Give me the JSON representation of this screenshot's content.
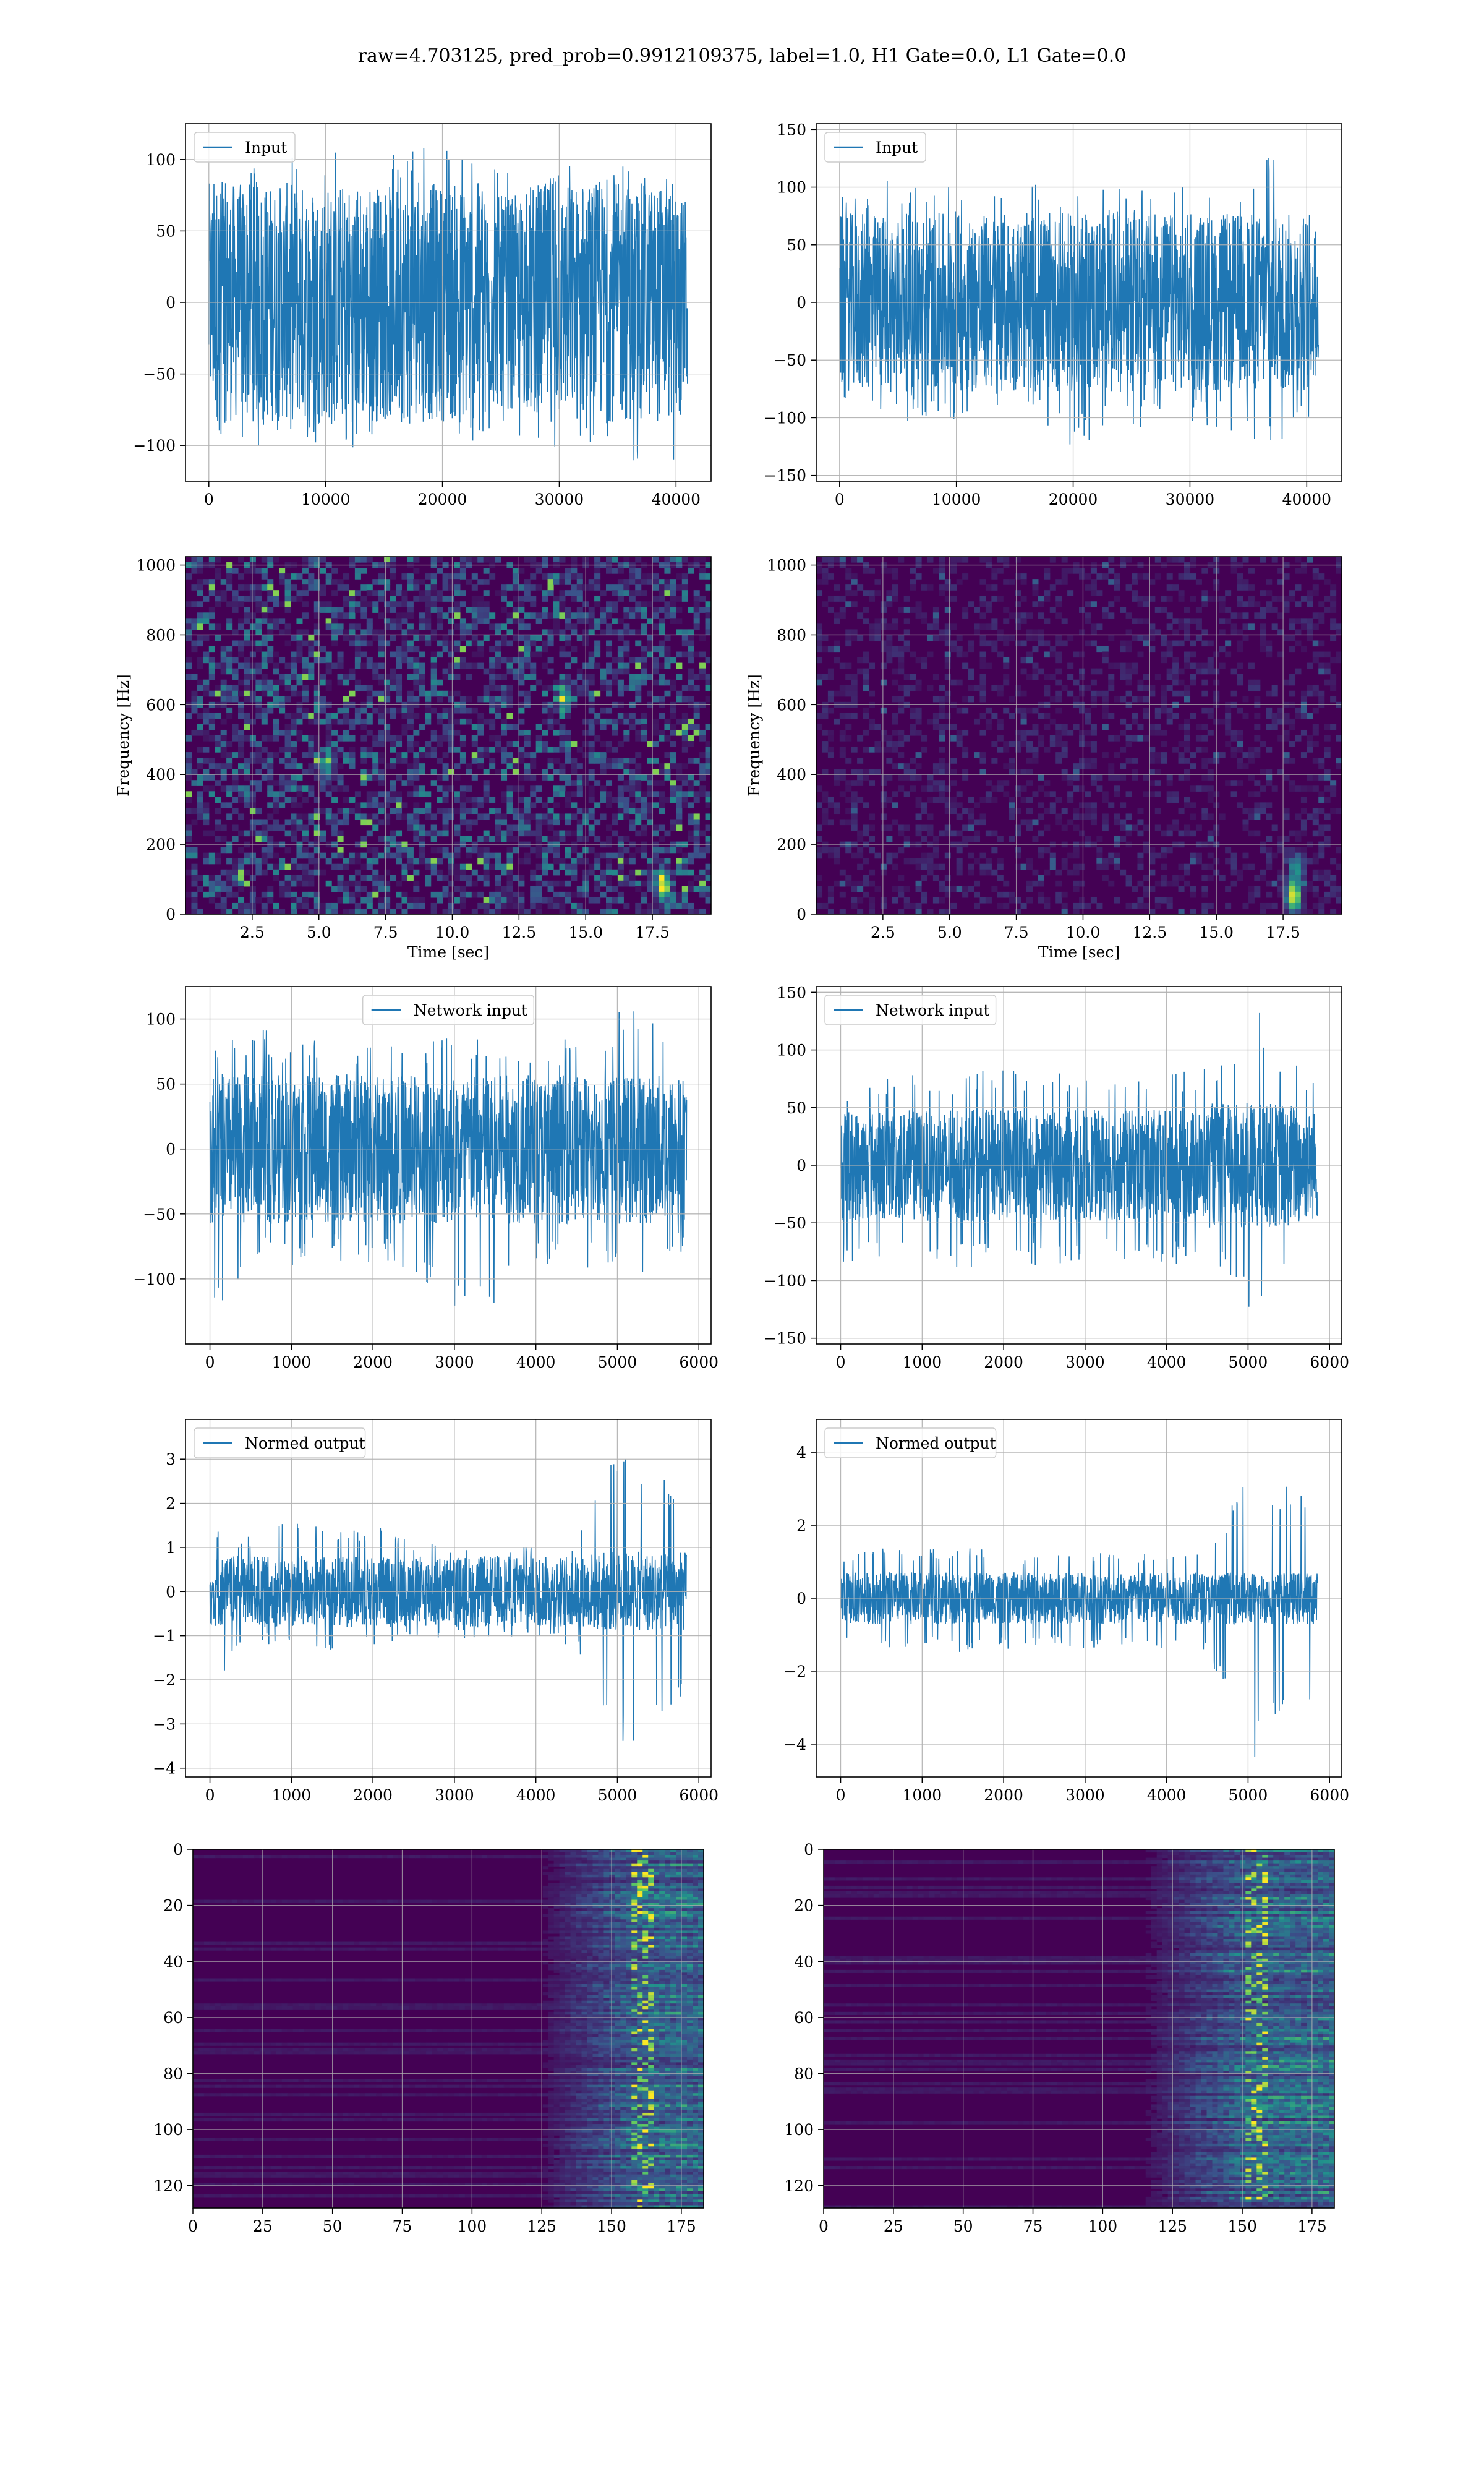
{
  "title": "raw=4.703125, pred_prob=0.9912109375, label=1.0, H1 Gate=0.0, L1 Gate=0.0",
  "colors": {
    "line": "#1f77b4",
    "grid": "#b0b0b0",
    "viridis_low": "#440154",
    "viridis_mid": "#21918c",
    "viridis_high": "#fde725"
  },
  "chart_data": [
    {
      "id": "input_h1",
      "type": "line",
      "series": [
        {
          "name": "Input",
          "envelope": {
            "x": [
              0,
              5000,
              10000,
              15000,
              20000,
              25000,
              30000,
              35000,
              40000,
              41000
            ],
            "upper": [
              95,
              100,
              105,
              110,
              112,
              95,
              100,
              110,
              108,
              70
            ],
            "lower": [
              -100,
              -105,
              -110,
              -100,
              -105,
              -95,
              -105,
              -110,
              -120,
              -70
            ],
            "body": 65
          }
        }
      ],
      "xlim": [
        -2000,
        43000
      ],
      "ylim": [
        -125,
        125
      ],
      "xticks": [
        0,
        10000,
        20000,
        30000,
        40000
      ],
      "yticks": [
        -100,
        -50,
        0,
        50,
        100
      ],
      "legend": "upper left",
      "grid": true,
      "xlabel": "",
      "ylabel": ""
    },
    {
      "id": "input_l1",
      "type": "line",
      "series": [
        {
          "name": "Input",
          "envelope": {
            "x": [
              0,
              5000,
              10000,
              15000,
              20000,
              25000,
              30000,
              35000,
              37000,
              40000,
              41000
            ],
            "upper": [
              95,
              110,
              100,
              105,
              100,
              105,
              100,
              110,
              138,
              105,
              70
            ],
            "lower": [
              -100,
              -105,
              -110,
              -100,
              -125,
              -110,
              -105,
              -115,
              -140,
              -110,
              -70
            ],
            "body": 60
          }
        }
      ],
      "xlim": [
        -2000,
        43000
      ],
      "ylim": [
        -155,
        155
      ],
      "xticks": [
        0,
        10000,
        20000,
        30000,
        40000
      ],
      "yticks": [
        -150,
        -100,
        -50,
        0,
        50,
        100,
        150
      ],
      "legend": "upper left",
      "grid": true,
      "xlabel": "",
      "ylabel": ""
    },
    {
      "id": "spec_h1",
      "type": "heatmap",
      "colormap": "viridis",
      "brightness": 0.22,
      "hotspots": [
        {
          "x": 17.9,
          "y": 80,
          "v": 1.0
        },
        {
          "x": 14.2,
          "y": 620,
          "v": 0.6
        },
        {
          "x": 5.3,
          "y": 420,
          "v": 0.5
        }
      ],
      "xlim": [
        0,
        19.7
      ],
      "ylim": [
        0,
        1024
      ],
      "xticks": [
        2.5,
        5.0,
        7.5,
        10.0,
        12.5,
        15.0,
        17.5
      ],
      "yticks": [
        0,
        200,
        400,
        600,
        800,
        1000
      ],
      "xlabel": "Time [sec]",
      "ylabel": "Frequency [Hz]",
      "grid": true
    },
    {
      "id": "spec_l1",
      "type": "heatmap",
      "colormap": "viridis",
      "brightness": 0.08,
      "hotspots": [
        {
          "x": 17.9,
          "y": 50,
          "v": 1.0
        },
        {
          "x": 18.0,
          "y": 130,
          "v": 0.5
        }
      ],
      "xlim": [
        0,
        19.7
      ],
      "ylim": [
        0,
        1024
      ],
      "xticks": [
        2.5,
        5.0,
        7.5,
        10.0,
        12.5,
        15.0,
        17.5
      ],
      "yticks": [
        0,
        200,
        400,
        600,
        800,
        1000
      ],
      "xlabel": "Time [sec]",
      "ylabel": "Frequency [Hz]",
      "grid": true
    },
    {
      "id": "net_h1",
      "type": "line",
      "series": [
        {
          "name": "Network input",
          "envelope": {
            "x": [
              0,
              500,
              1000,
              1500,
              2000,
              2500,
              3000,
              3500,
              4000,
              4500,
              5000,
              5200,
              5500,
              5850
            ],
            "upper": [
              75,
              95,
              85,
              90,
              85,
              80,
              90,
              85,
              80,
              90,
              105,
              110,
              95,
              80
            ],
            "lower": [
              -135,
              -85,
              -90,
              -85,
              -90,
              -95,
              -125,
              -120,
              -95,
              -90,
              -100,
              -120,
              -95,
              -80
            ],
            "body": 50
          }
        }
      ],
      "xlim": [
        -300,
        6150
      ],
      "ylim": [
        -150,
        125
      ],
      "xticks": [
        0,
        1000,
        2000,
        3000,
        4000,
        5000,
        6000
      ],
      "yticks": [
        -100,
        -50,
        0,
        50,
        100
      ],
      "legend": "upper center",
      "grid": true,
      "xlabel": "",
      "ylabel": ""
    },
    {
      "id": "net_l1",
      "type": "line",
      "series": [
        {
          "name": "Network input",
          "envelope": {
            "x": [
              0,
              500,
              1000,
              1500,
              2000,
              2500,
              3000,
              3500,
              4000,
              4500,
              4800,
              5100,
              5300,
              5600,
              5850
            ],
            "upper": [
              70,
              80,
              85,
              80,
              85,
              80,
              85,
              80,
              80,
              85,
              95,
              140,
              105,
              95,
              70
            ],
            "lower": [
              -90,
              -85,
              -80,
              -90,
              -85,
              -90,
              -85,
              -85,
              -85,
              -90,
              -100,
              -145,
              -110,
              -90,
              -70
            ],
            "body": 42
          }
        }
      ],
      "xlim": [
        -300,
        6150
      ],
      "ylim": [
        -155,
        155
      ],
      "xticks": [
        0,
        1000,
        2000,
        3000,
        4000,
        5000,
        6000
      ],
      "yticks": [
        -150,
        -100,
        -50,
        0,
        50,
        100,
        150
      ],
      "legend": "upper left",
      "grid": true,
      "xlabel": "",
      "ylabel": ""
    },
    {
      "id": "norm_h1",
      "type": "line",
      "series": [
        {
          "name": "Normed output",
          "envelope": {
            "x": [
              0,
              500,
              1000,
              1500,
              2000,
              2500,
              3000,
              3500,
              4000,
              4500,
              4700,
              4900,
              5100,
              5300,
              5500,
              5850
            ],
            "upper": [
              1.4,
              1.3,
              1.6,
              1.4,
              1.5,
              1.2,
              1.1,
              1.0,
              1.1,
              1.2,
              2.5,
              3.3,
              3.5,
              3.0,
              2.6,
              2.3
            ],
            "lower": [
              -2.2,
              -1.2,
              -1.3,
              -1.4,
              -1.3,
              -1.2,
              -1.1,
              -1.0,
              -1.1,
              -1.3,
              -2.2,
              -3.0,
              -3.8,
              -3.2,
              -2.8,
              -2.4
            ],
            "body": 0.7
          }
        }
      ],
      "xlim": [
        -300,
        6150
      ],
      "ylim": [
        -4.2,
        3.9
      ],
      "xticks": [
        0,
        1000,
        2000,
        3000,
        4000,
        5000,
        6000
      ],
      "yticks": [
        -4,
        -3,
        -2,
        -1,
        0,
        1,
        2,
        3
      ],
      "legend": "upper left",
      "grid": true,
      "xlabel": "",
      "ylabel": ""
    },
    {
      "id": "norm_l1",
      "type": "line",
      "series": [
        {
          "name": "Normed output",
          "envelope": {
            "x": [
              0,
              500,
              1000,
              1500,
              2000,
              2500,
              3000,
              3500,
              4000,
              4500,
              4800,
              5100,
              5300,
              5500,
              5850
            ],
            "upper": [
              1.2,
              1.4,
              1.3,
              1.5,
              1.3,
              1.2,
              1.3,
              1.2,
              1.3,
              1.5,
              2.6,
              4.5,
              3.4,
              3.0,
              2.8
            ],
            "lower": [
              -1.3,
              -1.4,
              -1.3,
              -1.5,
              -1.4,
              -1.3,
              -1.4,
              -1.3,
              -1.4,
              -1.6,
              -3.2,
              -4.5,
              -3.6,
              -3.4,
              -3.2
            ],
            "body": 0.55
          }
        }
      ],
      "xlim": [
        -300,
        6150
      ],
      "ylim": [
        -4.9,
        4.9
      ],
      "xticks": [
        0,
        1000,
        2000,
        3000,
        4000,
        5000,
        6000
      ],
      "yticks": [
        -4,
        -2,
        0,
        2,
        4
      ],
      "legend": "upper left",
      "grid": true,
      "xlabel": "",
      "ylabel": ""
    },
    {
      "id": "feat_h1",
      "type": "heatmap",
      "colormap": "viridis",
      "onset": 125,
      "peak": 162,
      "xlim": [
        0,
        183
      ],
      "ylim": [
        128,
        0
      ],
      "xticks": [
        0,
        25,
        50,
        75,
        100,
        125,
        150,
        175
      ],
      "yticks": [
        0,
        20,
        40,
        60,
        80,
        100,
        120
      ],
      "grid": true,
      "xlabel": "",
      "ylabel": ""
    },
    {
      "id": "feat_l1",
      "type": "heatmap",
      "colormap": "viridis",
      "onset": 115,
      "peak": 155,
      "xlim": [
        0,
        183
      ],
      "ylim": [
        128,
        0
      ],
      "xticks": [
        0,
        25,
        50,
        75,
        100,
        125,
        150,
        175
      ],
      "yticks": [
        0,
        20,
        40,
        60,
        80,
        100,
        120
      ],
      "grid": true,
      "xlabel": "",
      "ylabel": ""
    }
  ]
}
